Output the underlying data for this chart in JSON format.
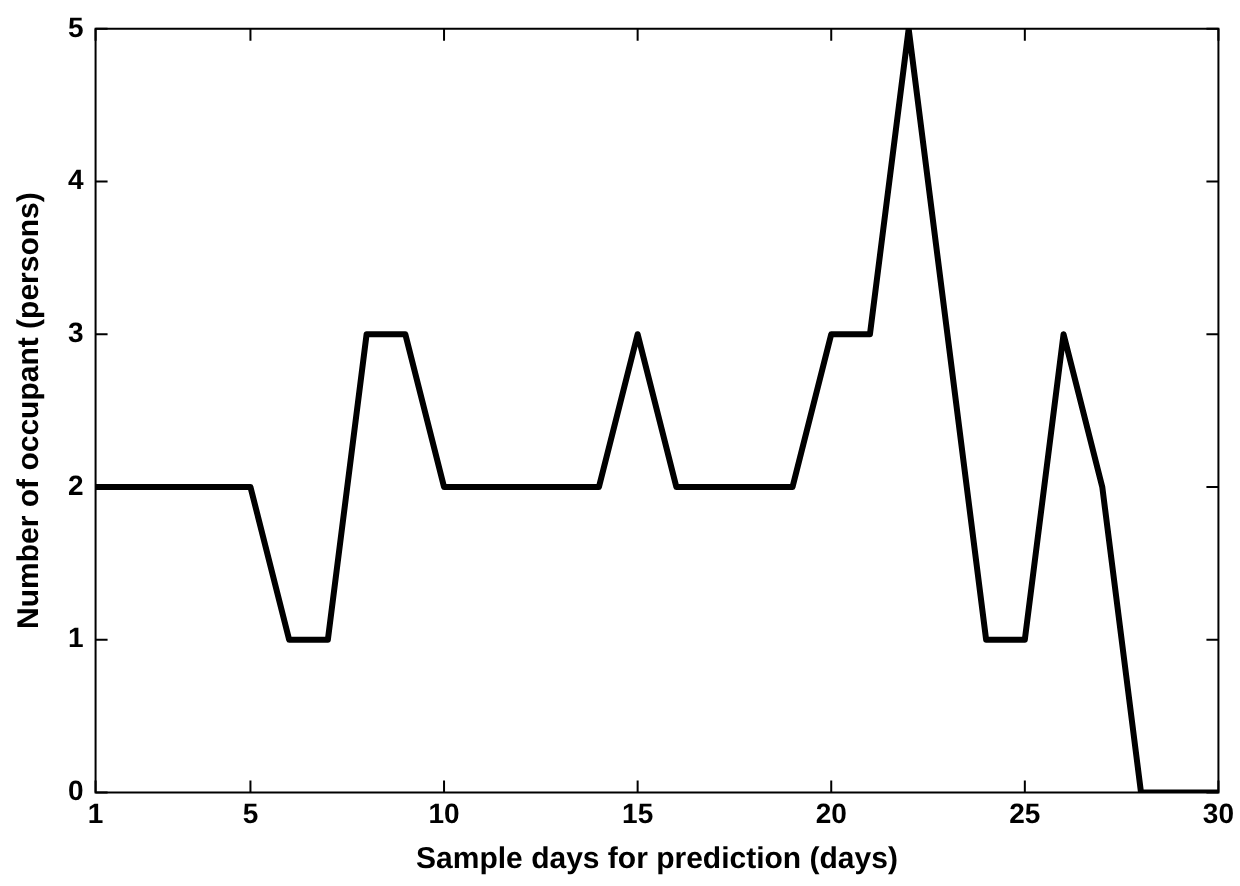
{
  "chart_data": {
    "type": "line",
    "xlabel": "Sample days for prediction (days)",
    "ylabel": "Number of occupant (persons)",
    "x": [
      1,
      2,
      3,
      4,
      5,
      6,
      7,
      8,
      9,
      10,
      11,
      12,
      13,
      14,
      15,
      16,
      17,
      18,
      19,
      20,
      21,
      22,
      23,
      24,
      25,
      26,
      27,
      28,
      29,
      30
    ],
    "series": [
      {
        "color": "#000000",
        "values": [
          2,
          2,
          2,
          2,
          2,
          1,
          1,
          3,
          3,
          2,
          2,
          2,
          2,
          2,
          3,
          2,
          2,
          2,
          2,
          3,
          3,
          5,
          3,
          1,
          1,
          3,
          2,
          0,
          0,
          0
        ]
      }
    ],
    "xlim": [
      1,
      30
    ],
    "xticks": [
      1,
      5,
      10,
      15,
      20,
      25,
      30
    ],
    "ylim": [
      0,
      5
    ],
    "yticks": [
      0,
      1,
      2,
      3,
      4,
      5
    ],
    "grid": false,
    "legend": false,
    "marker": "none",
    "line_style": "solid"
  }
}
